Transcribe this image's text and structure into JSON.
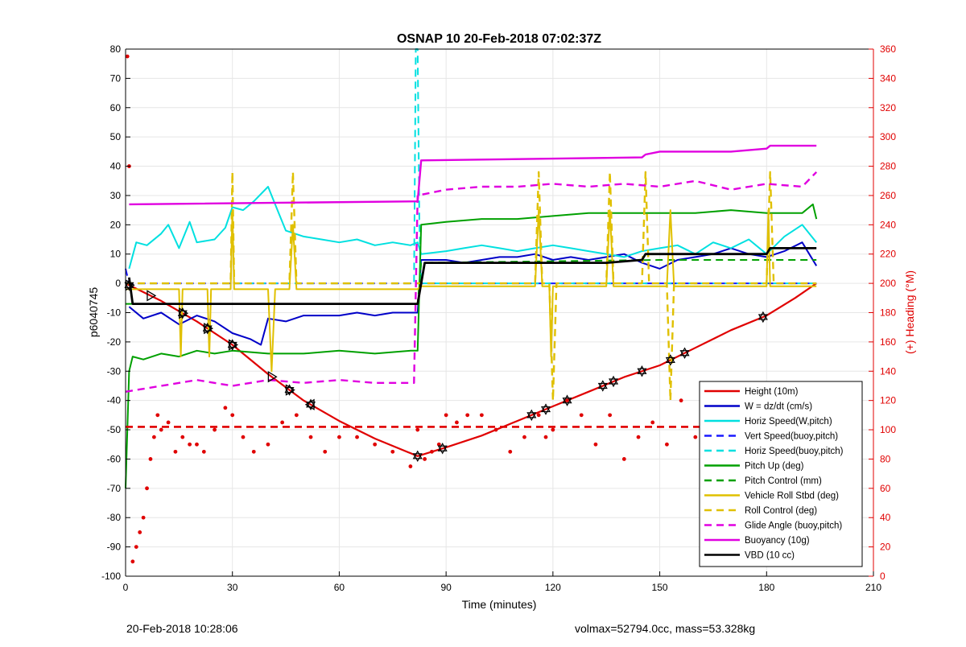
{
  "chart_data": {
    "type": "line",
    "title": "OSNAP 10 20-Feb-2018 07:02:37Z",
    "xlabel": "Time (minutes)",
    "ylabel": "p6040745",
    "y2label": "(+) Heading (°M)",
    "xlim": [
      0,
      210
    ],
    "ylim": [
      -100,
      80
    ],
    "y2lim": [
      0,
      360
    ],
    "xticks": [
      0,
      30,
      60,
      90,
      120,
      150,
      180,
      210
    ],
    "yticks": [
      80,
      70,
      60,
      50,
      40,
      30,
      20,
      10,
      0,
      -10,
      -20,
      -30,
      -40,
      -50,
      -60,
      -70,
      -80,
      -90,
      -100
    ],
    "y2ticks": [
      360,
      340,
      320,
      300,
      280,
      260,
      240,
      220,
      200,
      180,
      160,
      140,
      120,
      100,
      80,
      60,
      40,
      20,
      0
    ],
    "grid": true,
    "legend_position": "bottom-right",
    "series": [
      {
        "name": "Height (10m)",
        "color": "#e00000",
        "style": "solid",
        "width": 2.2,
        "x": [
          0,
          10,
          20,
          30,
          40,
          50,
          60,
          70,
          82,
          90,
          100,
          110,
          120,
          130,
          140,
          150,
          160,
          170,
          180,
          188,
          194
        ],
        "y": [
          0,
          -6,
          -13,
          -21,
          -31,
          -40,
          -47,
          -53,
          -59,
          -56,
          -52,
          -47,
          -42,
          -37,
          -32,
          -28,
          -22,
          -16,
          -11,
          -5,
          0
        ]
      },
      {
        "name": "W = dz/dt (cm/s)",
        "color": "#0000c8",
        "style": "solid",
        "width": 2,
        "x": [
          1,
          5,
          10,
          15,
          20,
          25,
          30,
          35,
          38,
          40,
          45,
          50,
          55,
          60,
          65,
          70,
          75,
          80,
          82,
          83,
          90,
          95,
          100,
          105,
          110,
          115,
          120,
          125,
          130,
          135,
          140,
          145,
          150,
          155,
          160,
          165,
          170,
          175,
          180,
          185,
          190,
          194
        ],
        "y": [
          -8,
          -12,
          -10,
          -14,
          -11,
          -13,
          -17,
          -19,
          -21,
          -12,
          -13,
          -11,
          -11,
          -11,
          -10,
          -11,
          -10,
          -10,
          -10,
          8,
          8,
          7,
          8,
          9,
          9,
          10,
          8,
          9,
          8,
          9,
          10,
          7,
          5,
          8,
          9,
          10,
          12,
          10,
          9,
          11,
          14,
          6
        ]
      },
      {
        "name": "Horiz Speed(W,pitch)",
        "color": "#00e0e0",
        "style": "solid",
        "width": 2,
        "x": [
          1,
          3,
          6,
          10,
          12,
          15,
          18,
          20,
          25,
          28,
          30,
          33,
          36,
          40,
          43,
          45,
          50,
          55,
          60,
          65,
          70,
          75,
          80,
          82,
          83,
          90,
          95,
          100,
          105,
          110,
          115,
          120,
          125,
          130,
          135,
          140,
          145,
          150,
          155,
          160,
          165,
          170,
          175,
          180,
          185,
          190,
          194
        ],
        "y": [
          5,
          14,
          13,
          17,
          20,
          12,
          21,
          14,
          15,
          19,
          26,
          25,
          28,
          33,
          24,
          18,
          16,
          15,
          14,
          15,
          13,
          14,
          13,
          14,
          10,
          11,
          12,
          13,
          12,
          11,
          12,
          13,
          12,
          11,
          10,
          9,
          11,
          12,
          13,
          10,
          14,
          12,
          15,
          10,
          16,
          20,
          14
        ]
      },
      {
        "name": "Vert Speed(buoy,pitch)",
        "color": "#1a1aff",
        "style": "dashed",
        "width": 2,
        "x": [
          0,
          1,
          82,
          83,
          194
        ],
        "y": [
          5,
          0,
          0,
          0,
          0
        ]
      },
      {
        "name": "Horiz Speed(buoy,pitch)",
        "color": "#00e0e0",
        "style": "dashed",
        "width": 2,
        "x": [
          0,
          1,
          81,
          81.5,
          82,
          82.5,
          83,
          194
        ],
        "y": [
          0,
          0,
          0,
          80,
          80,
          20,
          0,
          0
        ]
      },
      {
        "name": "Pitch Up (deg)",
        "color": "#00a000",
        "style": "solid",
        "width": 2,
        "x": [
          0,
          1,
          2,
          5,
          10,
          15,
          20,
          25,
          30,
          40,
          50,
          60,
          70,
          80,
          82,
          83,
          90,
          100,
          110,
          120,
          130,
          140,
          150,
          160,
          170,
          180,
          190,
          193,
          194
        ],
        "y": [
          -70,
          -30,
          -25,
          -26,
          -24,
          -25,
          -23,
          -24,
          -23,
          -24,
          -24,
          -23,
          -24,
          -23,
          -23,
          20,
          21,
          22,
          22,
          23,
          24,
          24,
          24,
          24,
          25,
          24,
          24,
          27,
          22
        ]
      },
      {
        "name": "Pitch Control (mm)",
        "color": "#00a000",
        "style": "dashed",
        "width": 2,
        "x": [
          0,
          82,
          83,
          150,
          194
        ],
        "y": [
          -7,
          -7,
          7,
          8,
          8
        ]
      },
      {
        "name": "Vehicle Roll Stbd (deg)",
        "color": "#e0c000",
        "style": "solid",
        "width": 2,
        "x": [
          0,
          10,
          15,
          15.5,
          16,
          23,
          23.5,
          24,
          29.5,
          30,
          30.5,
          40,
          41,
          42,
          46,
          47,
          48,
          82,
          83,
          100,
          115,
          116,
          117,
          119,
          119.5,
          120,
          135,
          136,
          137,
          152,
          153,
          154,
          180,
          180.5,
          181,
          194
        ],
        "y": [
          -2,
          -2,
          -2,
          -25,
          -2,
          -2,
          -25,
          -2,
          -2,
          25,
          -2,
          -2,
          -30,
          -2,
          -2,
          20,
          -2,
          -2,
          -1,
          -1,
          -1,
          25,
          -1,
          -1,
          -25,
          -1,
          -1,
          25,
          -1,
          -1,
          25,
          -1,
          -1,
          25,
          -1,
          -1
        ]
      },
      {
        "name": "Roll Control (deg)",
        "color": "#e0c000",
        "style": "dashed",
        "width": 2.4,
        "x": [
          0,
          29.5,
          30,
          30.5,
          46,
          47,
          48,
          82,
          83,
          115,
          116,
          117,
          119,
          120,
          121,
          135,
          136,
          137,
          145,
          146,
          147,
          152,
          153,
          154,
          180,
          181,
          182,
          194
        ],
        "y": [
          0,
          0,
          38,
          0,
          0,
          38,
          0,
          0,
          0,
          0,
          38,
          0,
          0,
          -40,
          0,
          0,
          38,
          0,
          0,
          38,
          0,
          0,
          -40,
          0,
          0,
          38,
          0,
          0
        ]
      },
      {
        "name": "Glide Angle (buoy,pitch)",
        "color": "#e000e0",
        "style": "dashed",
        "width": 2.4,
        "x": [
          0,
          10,
          20,
          30,
          40,
          50,
          60,
          70,
          80,
          81,
          82,
          90,
          100,
          110,
          120,
          130,
          140,
          150,
          160,
          170,
          180,
          190,
          194
        ],
        "y": [
          -37,
          -35,
          -33,
          -35,
          -33,
          -34,
          -33,
          -34,
          -34,
          -34,
          30,
          32,
          33,
          33,
          34,
          33,
          34,
          33,
          35,
          32,
          34,
          33,
          38
        ]
      },
      {
        "name": "Buoyancy (10g)",
        "color": "#e000e0",
        "style": "solid",
        "width": 2.4,
        "x": [
          1,
          82,
          83,
          145,
          146,
          150,
          160,
          170,
          180,
          181,
          194
        ],
        "y": [
          27,
          28,
          42,
          43,
          44,
          45,
          45,
          45,
          46,
          47,
          47
        ]
      },
      {
        "name": "VBD (10 cc)",
        "color": "#000000",
        "style": "solid",
        "width": 2.8,
        "x": [
          1,
          2,
          82,
          84,
          135,
          145,
          146,
          180,
          181,
          194
        ],
        "y": [
          2,
          -7,
          -7,
          7,
          7,
          8,
          10,
          10,
          12,
          12
        ]
      },
      {
        "name": "",
        "color": "#e00000",
        "style": "dashed",
        "width": 2.6,
        "x": [
          0,
          194
        ],
        "y": [
          -49,
          -49
        ]
      }
    ],
    "heading_points": {
      "color": "#e00000",
      "x": [
        0.5,
        1,
        2,
        3,
        4,
        5,
        6,
        7,
        8,
        9,
        10,
        12,
        14,
        16,
        18,
        20,
        22,
        25,
        28,
        30,
        33,
        36,
        40,
        44,
        48,
        52,
        56,
        60,
        65,
        70,
        75,
        80,
        82,
        84,
        86,
        88,
        90,
        93,
        96,
        100,
        104,
        108,
        112,
        116,
        118,
        120,
        124,
        128,
        132,
        136,
        140,
        144,
        148,
        152,
        156,
        160,
        164,
        168,
        172,
        176,
        180,
        184,
        188,
        192
      ],
      "y": [
        355,
        280,
        10,
        20,
        30,
        40,
        60,
        80,
        95,
        110,
        100,
        105,
        85,
        95,
        90,
        90,
        85,
        100,
        115,
        110,
        95,
        85,
        90,
        105,
        110,
        95,
        85,
        95,
        95,
        90,
        85,
        75,
        100,
        80,
        85,
        90,
        110,
        105,
        110,
        110,
        100,
        85,
        95,
        110,
        95,
        100,
        120,
        110,
        90,
        110,
        80,
        95,
        105,
        90,
        120,
        95,
        100,
        110,
        115,
        95,
        120,
        100,
        105,
        95
      ]
    },
    "markers": [
      {
        "series": "VBD (10 cc)",
        "symbol": "hexagram",
        "x": [
          1,
          16,
          23,
          30,
          46,
          52,
          82,
          89,
          114,
          118,
          124,
          134,
          137,
          145,
          153,
          157,
          179
        ]
      },
      {
        "series": "Height (10m)",
        "symbol": "triangle-right",
        "x": [
          1,
          7,
          16,
          23,
          30,
          41,
          46
        ]
      },
      {
        "series": "Height (10m)",
        "symbol": "triangle-left",
        "x": [
          52
        ]
      }
    ],
    "legend": [
      {
        "label": "Height (10m)",
        "color": "#e00000",
        "style": "solid"
      },
      {
        "label": "W = dz/dt (cm/s)",
        "color": "#0000c8",
        "style": "solid"
      },
      {
        "label": "Horiz Speed(W,pitch)",
        "color": "#00e0e0",
        "style": "solid"
      },
      {
        "label": "Vert Speed(buoy,pitch)",
        "color": "#1a1aff",
        "style": "dashed"
      },
      {
        "label": "Horiz Speed(buoy,pitch)",
        "color": "#00e0e0",
        "style": "dashed"
      },
      {
        "label": "Pitch Up (deg)",
        "color": "#00a000",
        "style": "solid"
      },
      {
        "label": "Pitch Control (mm)",
        "color": "#00a000",
        "style": "dashed"
      },
      {
        "label": "Vehicle Roll Stbd (deg)",
        "color": "#e0c000",
        "style": "solid"
      },
      {
        "label": "Roll Control (deg)",
        "color": "#e0c000",
        "style": "dashed"
      },
      {
        "label": "Glide Angle (buoy,pitch)",
        "color": "#e000e0",
        "style": "dashed"
      },
      {
        "label": "Buoyancy (10g)",
        "color": "#e000e0",
        "style": "solid"
      },
      {
        "label": "VBD (10 cc)",
        "color": "#000000",
        "style": "solid"
      }
    ]
  },
  "footer": {
    "left": "20-Feb-2018 10:28:06",
    "right": "volmax=52794.0cc, mass=53.328kg"
  },
  "colors": {
    "axis": "#000000",
    "right_axis": "#e00000",
    "grid": "#e6e6e6"
  }
}
